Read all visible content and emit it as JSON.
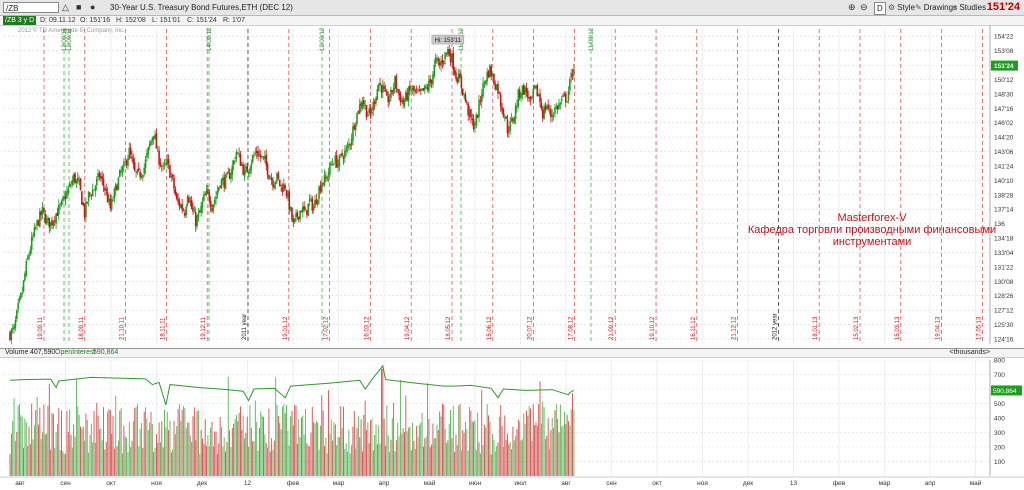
{
  "toolbar": {
    "symbol_input": "/ZB",
    "title": "30-Year U.S. Treasury Bond Futures,ETH (DEC 12)",
    "buttons": [
      {
        "label": "Style",
        "icon": "gear-icon"
      },
      {
        "label": "Drawings",
        "icon": "pencil-icon"
      },
      {
        "label": "Studies",
        "icon": "studies-icon"
      }
    ],
    "d_button": "D",
    "last_price": "151'24"
  },
  "infobar": {
    "symbol": "/ZB 3 y D",
    "date": "D: 09.11.12",
    "open": "O: 151'16",
    "high": "H: 152'08",
    "low": "L: 151'01",
    "close": "C: 151'24",
    "range": "R: 1'07"
  },
  "copyright": "2012 © TD Ameritrade IP Company, Inc.",
  "watermark": {
    "line1": "Masterforex-V",
    "line2": "Кафедра торговли производными финансовыми",
    "line3": "инструментами"
  },
  "volume_header": {
    "volume_label": "Volume",
    "volume_value": "407,590",
    "oi_label": "OpenInterest",
    "oi_value": "590,864",
    "units": "<thousands>"
  },
  "colors": {
    "up": "#1e9e1e",
    "down": "#c81414",
    "oi_line": "#2e9a2e",
    "grid": "#d9d9d9",
    "price_badge": "#c00000"
  },
  "chart_data": [
    {
      "type": "candlestick",
      "title": "30-Year U.S. Treasury Bond Futures,ETH (DEC 12)",
      "ylim": [
        124.0,
        155.4
      ],
      "y_ticks": [
        "154'22",
        "153'08",
        "151'24",
        "150'12",
        "148'30",
        "147'16",
        "146'02",
        "144'20",
        "143'06",
        "141'24",
        "140'10",
        "138'28",
        "137'14",
        "136",
        "134'18",
        "133'04",
        "131'22",
        "130'08",
        "128'26",
        "127'12",
        "125'30",
        "124'16"
      ],
      "y_tick_values": [
        154.6875,
        153.25,
        151.75,
        150.375,
        148.9375,
        147.5,
        146.0625,
        144.625,
        143.1875,
        141.75,
        140.3125,
        138.875,
        137.4375,
        136.0,
        134.5625,
        133.125,
        131.6875,
        130.25,
        128.8125,
        127.375,
        125.9375,
        124.5
      ],
      "current_price_label": "151'24",
      "annotations": [
        "Hi: 153'11"
      ],
      "x_month_labels": [
        "авг",
        "сен",
        "окт",
        "ноя",
        "дек",
        "12",
        "фев",
        "мар",
        "апр",
        "май",
        "июн",
        "июл",
        "авг",
        "сен",
        "окт",
        "ноя",
        "дек",
        "13",
        "фев",
        "мар",
        "апр",
        "май"
      ],
      "expiry_date_labels": [
        "19.09.11",
        "18.09.11",
        "21.10.11",
        "18.11.11",
        "19.12.11",
        "2011 year",
        "19.01.12",
        "17.02.12",
        "16.03.12",
        "19.04.12",
        "18.05.12",
        "15.06.12",
        "20.07.12",
        "17.08.12",
        "21.09.12",
        "19.10.12",
        "16.11.12",
        "21.12.12",
        "2012 year",
        "18.01.13",
        "15.02.13",
        "15.03.13",
        "19.04.13",
        "17.05.13"
      ],
      "green_marker_labels": [
        "12/09/11",
        "12/09/11",
        "14/02/12",
        "12/03/12",
        "11/06/12",
        "11/09/12"
      ],
      "close_path": [
        {
          "t": 0,
          "v": 125.0
        },
        {
          "t": 3,
          "v": 125.4
        },
        {
          "t": 6,
          "v": 127.6
        },
        {
          "t": 9,
          "v": 129.2
        },
        {
          "t": 12,
          "v": 131.8
        },
        {
          "t": 16,
          "v": 134.2
        },
        {
          "t": 20,
          "v": 136.0
        },
        {
          "t": 24,
          "v": 137.2
        },
        {
          "t": 27,
          "v": 136.2
        },
        {
          "t": 30,
          "v": 136.0
        },
        {
          "t": 34,
          "v": 137.0
        },
        {
          "t": 38,
          "v": 137.8
        },
        {
          "t": 41,
          "v": 138.8
        },
        {
          "t": 44,
          "v": 139.6
        },
        {
          "t": 47,
          "v": 140.6
        },
        {
          "t": 51,
          "v": 139.8
        },
        {
          "t": 55,
          "v": 137.0
        },
        {
          "t": 58,
          "v": 138.8
        },
        {
          "t": 62,
          "v": 139.5
        },
        {
          "t": 66,
          "v": 140.8
        },
        {
          "t": 70,
          "v": 139.5
        },
        {
          "t": 74,
          "v": 137.5
        },
        {
          "t": 77,
          "v": 139.0
        },
        {
          "t": 81,
          "v": 140.8
        },
        {
          "t": 84,
          "v": 141.6
        },
        {
          "t": 88,
          "v": 143.2
        },
        {
          "t": 92,
          "v": 141.0
        },
        {
          "t": 95,
          "v": 140.8
        },
        {
          "t": 99,
          "v": 141.6
        },
        {
          "t": 103,
          "v": 143.8
        },
        {
          "t": 106,
          "v": 145.2
        },
        {
          "t": 109,
          "v": 142.8
        },
        {
          "t": 113,
          "v": 141.4
        },
        {
          "t": 116,
          "v": 142.0
        },
        {
          "t": 120,
          "v": 140.2
        },
        {
          "t": 123,
          "v": 138.2
        },
        {
          "t": 126,
          "v": 137.8
        },
        {
          "t": 129,
          "v": 137.2
        },
        {
          "t": 131,
          "v": 139.2
        },
        {
          "t": 134,
          "v": 137.5
        },
        {
          "t": 137,
          "v": 136.2
        },
        {
          "t": 140,
          "v": 137.0
        },
        {
          "t": 143,
          "v": 138.5
        },
        {
          "t": 146,
          "v": 139.0
        },
        {
          "t": 149,
          "v": 137.8
        },
        {
          "t": 152,
          "v": 138.8
        },
        {
          "t": 155,
          "v": 140.2
        },
        {
          "t": 158,
          "v": 140.2
        },
        {
          "t": 161,
          "v": 140.6
        },
        {
          "t": 164,
          "v": 141.6
        },
        {
          "t": 167,
          "v": 143.2
        },
        {
          "t": 170,
          "v": 142.2
        },
        {
          "t": 173,
          "v": 141.0
        },
        {
          "t": 176,
          "v": 141.6
        },
        {
          "t": 179,
          "v": 142.6
        },
        {
          "t": 182,
          "v": 143.2
        },
        {
          "t": 185,
          "v": 142.6
        },
        {
          "t": 188,
          "v": 142.2
        },
        {
          "t": 191,
          "v": 141.0
        },
        {
          "t": 194,
          "v": 140.2
        },
        {
          "t": 197,
          "v": 140.6
        },
        {
          "t": 200,
          "v": 139.6
        },
        {
          "t": 203,
          "v": 139.8
        },
        {
          "t": 206,
          "v": 137.8
        },
        {
          "t": 209,
          "v": 135.8
        },
        {
          "t": 212,
          "v": 136.8
        },
        {
          "t": 215,
          "v": 137.5
        },
        {
          "t": 218,
          "v": 137.0
        },
        {
          "t": 221,
          "v": 138.2
        },
        {
          "t": 224,
          "v": 137.6
        },
        {
          "t": 227,
          "v": 139.0
        },
        {
          "t": 230,
          "v": 140.2
        },
        {
          "t": 233,
          "v": 140.4
        },
        {
          "t": 236,
          "v": 141.6
        },
        {
          "t": 239,
          "v": 142.4
        },
        {
          "t": 242,
          "v": 142.0
        },
        {
          "t": 245,
          "v": 142.8
        },
        {
          "t": 248,
          "v": 143.2
        },
        {
          "t": 251,
          "v": 144.2
        },
        {
          "t": 254,
          "v": 146.0
        },
        {
          "t": 257,
          "v": 147.4
        },
        {
          "t": 260,
          "v": 148.4
        },
        {
          "t": 263,
          "v": 147.2
        },
        {
          "t": 266,
          "v": 146.8
        },
        {
          "t": 269,
          "v": 148.4
        },
        {
          "t": 272,
          "v": 150.0
        },
        {
          "t": 275,
          "v": 149.4
        },
        {
          "t": 278,
          "v": 148.2
        },
        {
          "t": 281,
          "v": 148.8
        },
        {
          "t": 284,
          "v": 150.2
        },
        {
          "t": 287,
          "v": 148.8
        },
        {
          "t": 290,
          "v": 148.0
        },
        {
          "t": 293,
          "v": 148.8
        },
        {
          "t": 296,
          "v": 149.4
        },
        {
          "t": 299,
          "v": 149.0
        },
        {
          "t": 302,
          "v": 148.8
        },
        {
          "t": 305,
          "v": 149.2
        },
        {
          "t": 308,
          "v": 149.6
        },
        {
          "t": 311,
          "v": 150.4
        },
        {
          "t": 314,
          "v": 152.2
        },
        {
          "t": 317,
          "v": 151.8
        },
        {
          "t": 320,
          "v": 152.6
        },
        {
          "t": 323,
          "v": 153.3
        },
        {
          "t": 326,
          "v": 152.4
        },
        {
          "t": 329,
          "v": 150.8
        },
        {
          "t": 332,
          "v": 150.2
        },
        {
          "t": 335,
          "v": 148.8
        },
        {
          "t": 338,
          "v": 147.2
        },
        {
          "t": 341,
          "v": 146.0
        },
        {
          "t": 343,
          "v": 145.8
        },
        {
          "t": 345,
          "v": 147.0
        },
        {
          "t": 348,
          "v": 149.2
        },
        {
          "t": 351,
          "v": 150.6
        },
        {
          "t": 354,
          "v": 151.4
        },
        {
          "t": 357,
          "v": 150.2
        },
        {
          "t": 360,
          "v": 149.4
        },
        {
          "t": 362,
          "v": 148.0
        },
        {
          "t": 365,
          "v": 146.8
        },
        {
          "t": 367,
          "v": 145.4
        },
        {
          "t": 369,
          "v": 145.8
        },
        {
          "t": 372,
          "v": 146.8
        },
        {
          "t": 375,
          "v": 148.8
        },
        {
          "t": 378,
          "v": 149.4
        },
        {
          "t": 381,
          "v": 149.2
        },
        {
          "t": 384,
          "v": 147.8
        },
        {
          "t": 387,
          "v": 149.4
        },
        {
          "t": 390,
          "v": 148.8
        },
        {
          "t": 393,
          "v": 147.0
        },
        {
          "t": 396,
          "v": 147.8
        },
        {
          "t": 399,
          "v": 146.8
        },
        {
          "t": 402,
          "v": 147.4
        },
        {
          "t": 405,
          "v": 147.8
        },
        {
          "t": 408,
          "v": 148.4
        },
        {
          "t": 411,
          "v": 148.6
        },
        {
          "t": 414,
          "v": 150.6
        },
        {
          "t": 416,
          "v": 151.75
        }
      ]
    },
    {
      "type": "bar+line",
      "title": "Volume / OpenInterest",
      "units": "thousands",
      "ylim": [
        0,
        800
      ],
      "y_ticks": [
        "800",
        "700",
        "600",
        "500",
        "400",
        "300",
        "200",
        "100"
      ],
      "series": [
        {
          "name": "Volume",
          "last": 407590
        },
        {
          "name": "OpenInterest",
          "last": 590864
        }
      ],
      "oi_path": [
        {
          "t": 0,
          "v": 660
        },
        {
          "t": 10,
          "v": 665
        },
        {
          "t": 30,
          "v": 668
        },
        {
          "t": 34,
          "v": 610
        },
        {
          "t": 36,
          "v": 655
        },
        {
          "t": 60,
          "v": 680
        },
        {
          "t": 100,
          "v": 670
        },
        {
          "t": 105,
          "v": 630
        },
        {
          "t": 110,
          "v": 645
        },
        {
          "t": 115,
          "v": 490
        },
        {
          "t": 118,
          "v": 630
        },
        {
          "t": 140,
          "v": 610
        },
        {
          "t": 155,
          "v": 600
        },
        {
          "t": 172,
          "v": 585
        },
        {
          "t": 176,
          "v": 520
        },
        {
          "t": 180,
          "v": 600
        },
        {
          "t": 195,
          "v": 605
        },
        {
          "t": 203,
          "v": 540
        },
        {
          "t": 207,
          "v": 620
        },
        {
          "t": 235,
          "v": 640
        },
        {
          "t": 258,
          "v": 660
        },
        {
          "t": 262,
          "v": 600
        },
        {
          "t": 267,
          "v": 665
        },
        {
          "t": 275,
          "v": 760
        },
        {
          "t": 277,
          "v": 665
        },
        {
          "t": 300,
          "v": 640
        },
        {
          "t": 320,
          "v": 620
        },
        {
          "t": 328,
          "v": 620
        },
        {
          "t": 340,
          "v": 625
        },
        {
          "t": 355,
          "v": 605
        },
        {
          "t": 360,
          "v": 540
        },
        {
          "t": 364,
          "v": 600
        },
        {
          "t": 380,
          "v": 590
        },
        {
          "t": 400,
          "v": 595
        },
        {
          "t": 412,
          "v": 560
        },
        {
          "t": 413,
          "v": 575
        },
        {
          "t": 416,
          "v": 590
        }
      ]
    }
  ]
}
